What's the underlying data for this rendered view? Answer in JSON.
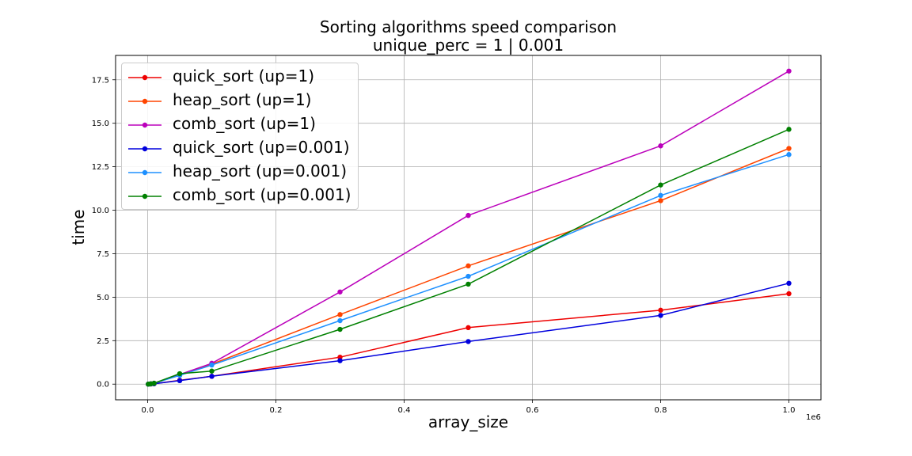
{
  "chart_data": {
    "type": "line",
    "title": "Sorting algorithms speed comparison",
    "subtitle": "unique_perc = 1 | 0.001",
    "xlabel": "array_size",
    "ylabel": "time",
    "x_offset_label": "1e6",
    "xlim": [
      -50000,
      1050000
    ],
    "ylim": [
      -0.9,
      18.9
    ],
    "x_ticks": [
      0,
      200000,
      400000,
      600000,
      800000,
      1000000
    ],
    "x_tick_labels": [
      "0.0",
      "0.2",
      "0.4",
      "0.6",
      "0.8",
      "1.0"
    ],
    "y_ticks": [
      0,
      2.5,
      5,
      7.5,
      10,
      12.5,
      15,
      17.5
    ],
    "y_tick_labels": [
      "0.0",
      "2.5",
      "5.0",
      "7.5",
      "10.0",
      "12.5",
      "15.0",
      "17.5"
    ],
    "grid": true,
    "legend_position": "top-left",
    "x": [
      1000,
      5000,
      10000,
      50000,
      100000,
      300000,
      500000,
      800000,
      1000000
    ],
    "series": [
      {
        "name": "quick_sort (up=1)",
        "color": "#ee0000",
        "values": [
          0.0,
          0.01,
          0.02,
          0.22,
          0.45,
          1.55,
          3.25,
          4.25,
          5.2
        ]
      },
      {
        "name": "heap_sort (up=1)",
        "color": "#ff4500",
        "values": [
          0.0,
          0.02,
          0.05,
          0.55,
          1.15,
          4.0,
          6.8,
          10.55,
          13.55
        ]
      },
      {
        "name": "comb_sort (up=1)",
        "color": "#bb00bb",
        "values": [
          0.0,
          0.02,
          0.05,
          0.55,
          1.2,
          5.3,
          9.7,
          13.7,
          18.0
        ]
      },
      {
        "name": "quick_sort (up=0.001)",
        "color": "#0000dd",
        "values": [
          0.0,
          0.01,
          0.02,
          0.2,
          0.45,
          1.35,
          2.45,
          3.95,
          5.8
        ]
      },
      {
        "name": "heap_sort (up=0.001)",
        "color": "#1e90ff",
        "values": [
          0.0,
          0.02,
          0.05,
          0.5,
          1.1,
          3.65,
          6.2,
          10.85,
          13.2
        ]
      },
      {
        "name": "comb_sort (up=0.001)",
        "color": "#008000",
        "values": [
          0.0,
          0.02,
          0.05,
          0.6,
          0.75,
          3.15,
          5.75,
          11.45,
          14.65
        ]
      }
    ]
  }
}
